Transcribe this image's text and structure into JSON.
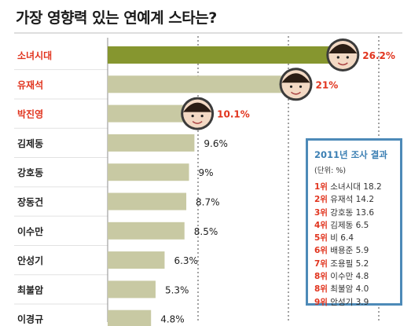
{
  "title": "가장 영향력 있는 연예계 스타는?",
  "colors": {
    "bar": "#c8c9a3",
    "bar_top": "#86962f",
    "highlight_text": "#e1341e",
    "normal_text": "#222222",
    "gridline": "#444444",
    "panel_border": "#4d8ab8",
    "panel_title": "#3b7fb3"
  },
  "chart_data": {
    "type": "bar",
    "orientation": "horizontal",
    "title": "가장 영향력 있는 연예계 스타는?",
    "categories": [
      "소녀시대",
      "유재석",
      "박진영",
      "김제동",
      "강호동",
      "장동건",
      "이수만",
      "안성기",
      "최불암",
      "이경규"
    ],
    "values": [
      26.2,
      21,
      10.1,
      9.6,
      9,
      8.7,
      8.5,
      6.3,
      5.3,
      4.8
    ],
    "value_labels": [
      "26.2%",
      "21%",
      "10.1%",
      "9.6%",
      "9%",
      "8.7%",
      "8.5%",
      "6.3%",
      "5.3%",
      "4.8%"
    ],
    "highlighted": [
      true,
      true,
      true,
      false,
      false,
      false,
      false,
      false,
      false,
      false
    ],
    "avatars": [
      "girls-group-photo-icon",
      "yoo-jae-suk-photo-icon",
      "park-jin-young-photo-icon",
      null,
      null,
      null,
      null,
      null,
      null,
      null
    ],
    "xlim": [
      0,
      30
    ],
    "grid": true
  },
  "side_panel": {
    "title": "2011년 조사 결과",
    "unit": "(단위: %)",
    "items": [
      {
        "rank": "1위",
        "text": " 소녀시대 18.2"
      },
      {
        "rank": "2위",
        "text": " 유재석 14.2"
      },
      {
        "rank": "3위",
        "text": " 강호동 13.6"
      },
      {
        "rank": "4위",
        "text": " 김제동 6.5"
      },
      {
        "rank": "5위",
        "text": " 비 6.4"
      },
      {
        "rank": "6위",
        "text": " 배용준 5.9"
      },
      {
        "rank": "7위",
        "text": " 조용필 5.2"
      },
      {
        "rank": "8위",
        "text": " 이수만 4.8"
      },
      {
        "rank": "8위",
        "text": " 최불암 4.0"
      },
      {
        "rank": "9위",
        "text": " 안성기 3.9"
      }
    ]
  }
}
